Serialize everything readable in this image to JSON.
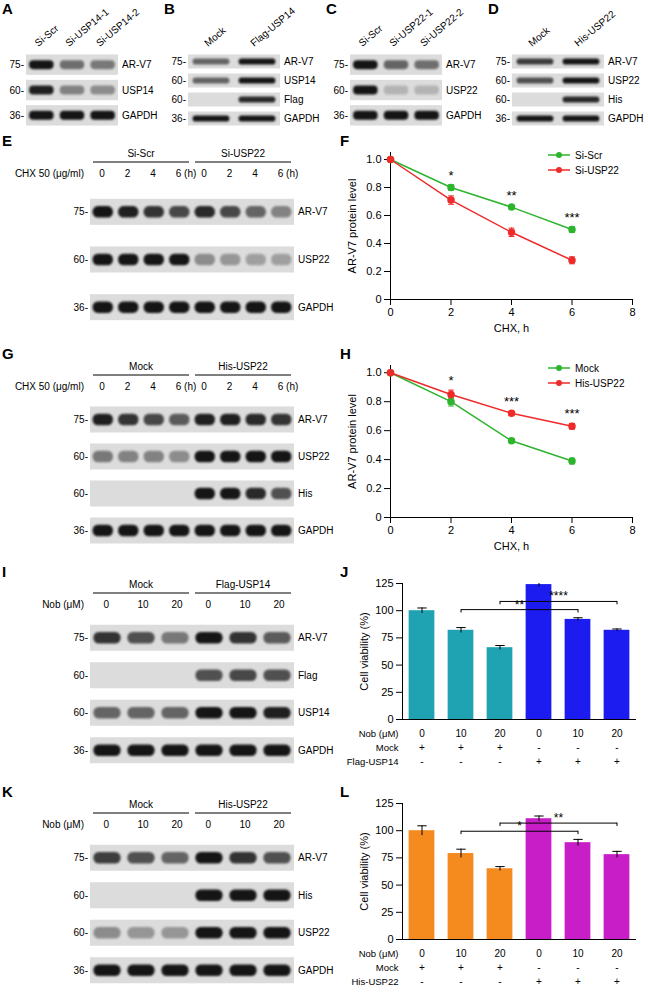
{
  "blots": [
    {
      "panel": "A",
      "lanes": [
        "Si-Scr",
        "Si-USP14-1",
        "Si-USP14-2"
      ],
      "rows": [
        {
          "mw": "75-",
          "label": "AR-V7",
          "bands": [
            1,
            0.55,
            0.5
          ]
        },
        {
          "mw": "60-",
          "label": "USP14",
          "bands": [
            0.95,
            0.45,
            0.4
          ]
        },
        {
          "mw": "36-",
          "label": "GAPDH",
          "bands": [
            1,
            1,
            1
          ]
        }
      ]
    },
    {
      "panel": "B",
      "lanes": [
        "Mock",
        "Flag-USP14"
      ],
      "rows": [
        {
          "mw": "75-",
          "label": "AR-V7",
          "bands": [
            0.6,
            1
          ]
        },
        {
          "mw": "60-",
          "label": "USP14",
          "bands": [
            0.6,
            1
          ]
        },
        {
          "mw": "60-",
          "label": "Flag",
          "bands": [
            0,
            0.9
          ]
        },
        {
          "mw": "36-",
          "label": "GAPDH",
          "bands": [
            1,
            1
          ]
        }
      ]
    },
    {
      "panel": "C",
      "lanes": [
        "Si-Scr",
        "Si-USP22-1",
        "Si-USP22-2"
      ],
      "rows": [
        {
          "mw": "75-",
          "label": "AR-V7",
          "bands": [
            1,
            0.6,
            0.55
          ]
        },
        {
          "mw": "60-",
          "label": "USP22",
          "bands": [
            1,
            0.2,
            0.2
          ]
        },
        {
          "mw": "36-",
          "label": "GAPDH",
          "bands": [
            1,
            1,
            1
          ]
        }
      ]
    },
    {
      "panel": "D",
      "lanes": [
        "Mock",
        "His-USP22"
      ],
      "rows": [
        {
          "mw": "75-",
          "label": "AR-V7",
          "bands": [
            0.8,
            1
          ]
        },
        {
          "mw": "60-",
          "label": "USP22",
          "bands": [
            0.7,
            1
          ]
        },
        {
          "mw": "60-",
          "label": "His",
          "bands": [
            0,
            0.9
          ]
        },
        {
          "mw": "36-",
          "label": "GAPDH",
          "bands": [
            1,
            1
          ]
        }
      ]
    },
    {
      "panel": "E",
      "treatment": "CHX 50 (μg/ml)",
      "groups": [
        {
          "name": "Si-Scr",
          "lanes": [
            "0",
            "2",
            "4",
            "6 (h)"
          ]
        },
        {
          "name": "Si-USP22",
          "lanes": [
            "0",
            "2",
            "4",
            "6 (h)"
          ]
        }
      ],
      "rows": [
        {
          "mw": "75-",
          "label": "AR-V7",
          "bands": [
            1,
            0.95,
            0.85,
            0.75,
            0.9,
            0.75,
            0.6,
            0.45
          ]
        },
        {
          "mw": "60-",
          "label": "USP22",
          "bands": [
            1,
            1,
            1,
            1,
            0.4,
            0.35,
            0.3,
            0.3
          ]
        },
        {
          "mw": "36-",
          "label": "GAPDH",
          "bands": [
            1,
            1,
            1,
            1,
            1,
            1,
            1,
            1
          ]
        }
      ]
    },
    {
      "panel": "G",
      "treatment": "CHX 50 (μg/ml)",
      "groups": [
        {
          "name": "Mock",
          "lanes": [
            "0",
            "2",
            "4",
            "6 (h)"
          ]
        },
        {
          "name": "His-USP22",
          "lanes": [
            "0",
            "2",
            "4",
            "6 (h)"
          ]
        }
      ],
      "rows": [
        {
          "mw": "75-",
          "label": "AR-V7",
          "bands": [
            0.95,
            0.85,
            0.75,
            0.65,
            0.95,
            0.95,
            0.9,
            0.85
          ]
        },
        {
          "mw": "60-",
          "label": "USP22",
          "bands": [
            0.5,
            0.45,
            0.45,
            0.4,
            1,
            1,
            1,
            1
          ]
        },
        {
          "mw": "60-",
          "label": "His",
          "bands": [
            0,
            0,
            0,
            0,
            1,
            1,
            0.9,
            0.7
          ]
        },
        {
          "mw": "36-",
          "label": "GAPDH",
          "bands": [
            1,
            1,
            1,
            1,
            1,
            1,
            1,
            1
          ]
        }
      ]
    },
    {
      "panel": "I",
      "treatment": "Nob (μM)",
      "groups": [
        {
          "name": "Mock",
          "lanes": [
            "0",
            "10",
            "20"
          ]
        },
        {
          "name": "Flag-USP14",
          "lanes": [
            "0",
            "10",
            "20"
          ]
        }
      ],
      "rows": [
        {
          "mw": "75-",
          "label": "AR-V7",
          "bands": [
            0.85,
            0.7,
            0.5,
            1,
            0.85,
            0.65
          ]
        },
        {
          "mw": "60-",
          "label": "Flag",
          "bands": [
            0,
            0,
            0,
            0.7,
            0.75,
            0.7
          ]
        },
        {
          "mw": "60-",
          "label": "USP14",
          "bands": [
            0.6,
            0.6,
            0.6,
            1,
            1,
            0.95
          ]
        },
        {
          "mw": "36-",
          "label": "GAPDH",
          "bands": [
            1,
            1,
            1,
            1,
            1,
            1
          ]
        }
      ]
    },
    {
      "panel": "K",
      "treatment": "Nob (μM)",
      "groups": [
        {
          "name": "Mock",
          "lanes": [
            "0",
            "10",
            "20"
          ]
        },
        {
          "name": "His-USP22",
          "lanes": [
            "0",
            "10",
            "20"
          ]
        }
      ],
      "rows": [
        {
          "mw": "75-",
          "label": "AR-V7",
          "bands": [
            0.8,
            0.7,
            0.6,
            1,
            0.85,
            0.7
          ]
        },
        {
          "mw": "60-",
          "label": "His",
          "bands": [
            0,
            0,
            0,
            1,
            1,
            1
          ]
        },
        {
          "mw": "60-",
          "label": "USP22",
          "bands": [
            0.4,
            0.35,
            0.35,
            1,
            1,
            1
          ]
        },
        {
          "mw": "36-",
          "label": "GAPDH",
          "bands": [
            1,
            1,
            1,
            1,
            1,
            1
          ]
        }
      ]
    }
  ],
  "chart_data": [
    {
      "panel": "F",
      "type": "line",
      "x_label": "CHX, h",
      "y_label": "AR-V7 protein level",
      "x": [
        0,
        2,
        4,
        6
      ],
      "xlim": [
        0,
        8
      ],
      "xticks": [
        0,
        2,
        4,
        6,
        8
      ],
      "ylim": [
        0,
        1.05
      ],
      "yticks": [
        0,
        0.2,
        0.4,
        0.6,
        0.8,
        {
          "value": 1,
          "label": "1.0"
        }
      ],
      "legend": "top-right",
      "series": [
        {
          "name": "Si-Scr",
          "color": "#2db52d",
          "marker": "circle",
          "values": [
            1,
            0.8,
            0.66,
            0.5
          ],
          "errors": [
            0,
            0.02,
            0.015,
            0.02
          ]
        },
        {
          "name": "Si-USP22",
          "color": "#ee2a2a",
          "marker": "circle",
          "values": [
            1,
            0.71,
            0.48,
            0.28
          ],
          "errors": [
            0,
            0.03,
            0.03,
            0.025
          ]
        }
      ],
      "annotations": [
        {
          "x": 2,
          "text": "*"
        },
        {
          "x": 4,
          "text": "**"
        },
        {
          "x": 6,
          "text": "***"
        }
      ]
    },
    {
      "panel": "H",
      "type": "line",
      "x_label": "CHX, h",
      "y_label": "AR-V7 protein level",
      "x": [
        0,
        2,
        4,
        6
      ],
      "xlim": [
        0,
        8
      ],
      "xticks": [
        0,
        2,
        4,
        6,
        8
      ],
      "ylim": [
        0,
        1.05
      ],
      "yticks": [
        0,
        0.2,
        0.4,
        0.6,
        0.8,
        {
          "value": 1,
          "label": "1.0"
        }
      ],
      "legend": "top-right",
      "series": [
        {
          "name": "Mock",
          "color": "#2db52d",
          "marker": "circle",
          "values": [
            1,
            0.8,
            0.53,
            0.39
          ],
          "errors": [
            0,
            0.03,
            0.015,
            0.02
          ]
        },
        {
          "name": "His-USP22",
          "color": "#ee2a2a",
          "marker": "circle",
          "values": [
            1,
            0.85,
            0.72,
            0.63
          ],
          "errors": [
            0,
            0.03,
            0.015,
            0.02
          ]
        }
      ],
      "annotations": [
        {
          "x": 2,
          "text": "*"
        },
        {
          "x": 4,
          "text": "***"
        },
        {
          "x": 6,
          "text": "***"
        }
      ]
    },
    {
      "panel": "J",
      "type": "bar",
      "y_label": "Cell viability (%)",
      "categories": [
        null,
        null,
        null,
        null,
        null,
        null
      ],
      "tick_labels": "y",
      "ylim": [
        0,
        125
      ],
      "yticks": [
        0,
        25,
        50,
        75,
        100,
        125
      ],
      "values": [
        100,
        82,
        66,
        124,
        92,
        82
      ],
      "errors": [
        2.5,
        2.5,
        2,
        2,
        1.5,
        1.2
      ],
      "colors": [
        "#1fa3b3",
        "#1fa3b3",
        "#1fa3b3",
        "#1c1cf0",
        "#1c1cf0",
        "#1c1cf0"
      ],
      "condition_rows": [
        {
          "label": "Nob (μM)",
          "cells": [
            "0",
            "10",
            "20",
            "0",
            "10",
            "20"
          ]
        },
        {
          "label": "Mock",
          "cells": [
            "+",
            "+",
            "+",
            "-",
            "-",
            "-"
          ]
        },
        {
          "label": "Flag-USP14",
          "cells": [
            "-",
            "-",
            "-",
            "+",
            "+",
            "+"
          ]
        }
      ],
      "comparisons": [
        {
          "from": 1,
          "to": 4,
          "text": "**"
        },
        {
          "from": 2,
          "to": 5,
          "text": "****"
        }
      ]
    },
    {
      "panel": "L",
      "type": "bar",
      "y_label": "Cell viability (%)",
      "categories": [
        null,
        null,
        null,
        null,
        null,
        null
      ],
      "tick_labels": "y",
      "ylim": [
        0,
        125
      ],
      "yticks": [
        0,
        25,
        50,
        75,
        100,
        125
      ],
      "values": [
        100,
        79,
        65,
        111,
        89,
        78
      ],
      "errors": [
        4.5,
        4,
        2,
        2.5,
        3,
        3
      ],
      "colors": [
        "#f58a1f",
        "#f58a1f",
        "#f58a1f",
        "#c81ec8",
        "#c81ec8",
        "#c81ec8"
      ],
      "condition_rows": [
        {
          "label": "Nob (μM)",
          "cells": [
            "0",
            "10",
            "20",
            "0",
            "10",
            "20"
          ]
        },
        {
          "label": "Mock",
          "cells": [
            "+",
            "+",
            "+",
            "-",
            "-",
            "-"
          ]
        },
        {
          "label": "His-USP22",
          "cells": [
            "-",
            "-",
            "-",
            "+",
            "+",
            "+"
          ]
        }
      ],
      "comparisons": [
        {
          "from": 1,
          "to": 4,
          "text": "*"
        },
        {
          "from": 2,
          "to": 5,
          "text": "**"
        }
      ]
    }
  ]
}
